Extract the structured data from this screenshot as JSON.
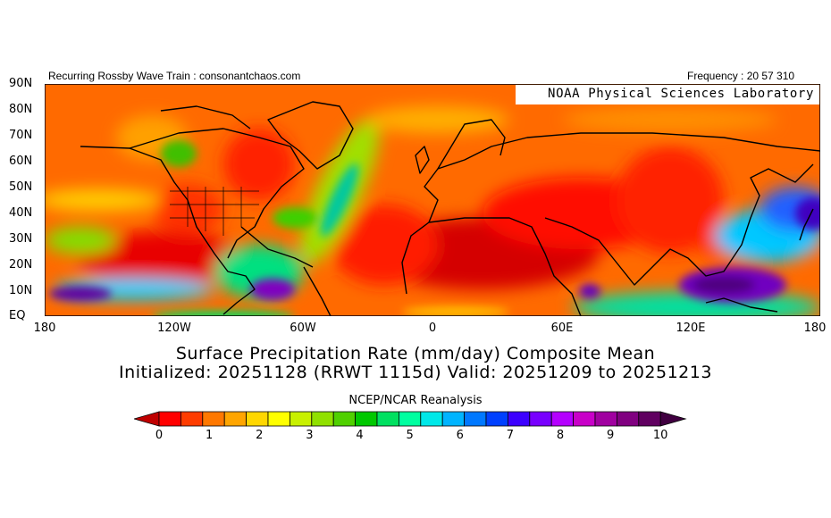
{
  "header": {
    "left_text": "Recurring Rossby Wave Train : consonantchaos.com",
    "right_text": "Frequency : 20 57 310"
  },
  "credit": "NOAA Physical Sciences Laboratory",
  "map": {
    "lat_labels": [
      "90N",
      "80N",
      "70N",
      "60N",
      "50N",
      "40N",
      "30N",
      "20N",
      "10N",
      "EQ"
    ],
    "lon_labels": [
      "180",
      "120W",
      "60W",
      "0",
      "60E",
      "120E",
      "180"
    ]
  },
  "title_line1": "Surface Precipitation Rate (mm/day) Composite Mean",
  "title_line2": "Initialized: 20251128 (RRWT 1115d) Valid: 20251209 to 20251213",
  "subtitle": "NCEP/NCAR Reanalysis",
  "colorbar": {
    "labels": [
      "0",
      "1",
      "2",
      "3",
      "4",
      "5",
      "6",
      "7",
      "8",
      "9",
      "10"
    ],
    "colors": [
      "#c00000",
      "#ff0000",
      "#ff3c00",
      "#ff7800",
      "#ffa500",
      "#ffd700",
      "#ffff00",
      "#c8f000",
      "#90e000",
      "#50d000",
      "#00c800",
      "#00e060",
      "#00ffa0",
      "#00e8e8",
      "#00b4ff",
      "#0078ff",
      "#0040ff",
      "#3c00ff",
      "#7800ff",
      "#b400ff",
      "#c800c8",
      "#a000a0",
      "#800080",
      "#600060",
      "#400040"
    ]
  }
}
